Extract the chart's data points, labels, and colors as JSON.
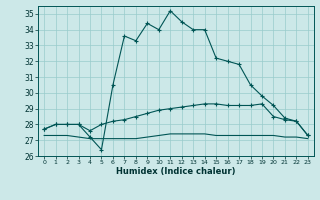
{
  "xlabel": "Humidex (Indice chaleur)",
  "background_color": "#cce8e8",
  "grid_color": "#99cccc",
  "line_color": "#005555",
  "xlim": [
    -0.5,
    23.5
  ],
  "ylim": [
    26,
    35.5
  ],
  "yticks": [
    26,
    27,
    28,
    29,
    30,
    31,
    32,
    33,
    34,
    35
  ],
  "xticks": [
    0,
    1,
    2,
    3,
    4,
    5,
    6,
    7,
    8,
    9,
    10,
    11,
    12,
    13,
    14,
    15,
    16,
    17,
    18,
    19,
    20,
    21,
    22,
    23
  ],
  "line_main_x": [
    0,
    1,
    2,
    3,
    4,
    5,
    6,
    7,
    8,
    9,
    10,
    11,
    12,
    13,
    14,
    15,
    16,
    17,
    18,
    19,
    20,
    21,
    22,
    23
  ],
  "line_main_y": [
    27.7,
    28.0,
    28.0,
    28.0,
    27.2,
    26.4,
    30.5,
    33.6,
    33.3,
    34.4,
    34.0,
    35.2,
    34.5,
    34.0,
    34.0,
    32.2,
    32.0,
    31.8,
    30.5,
    29.8,
    29.2,
    28.4,
    28.2,
    27.3
  ],
  "line_slow_x": [
    0,
    1,
    2,
    3,
    4,
    5,
    6,
    7,
    8,
    9,
    10,
    11,
    12,
    13,
    14,
    15,
    16,
    17,
    18,
    19,
    20,
    21,
    22,
    23
  ],
  "line_slow_y": [
    27.7,
    28.0,
    28.0,
    28.0,
    27.6,
    28.0,
    28.2,
    28.3,
    28.5,
    28.7,
    28.9,
    29.0,
    29.1,
    29.2,
    29.3,
    29.3,
    29.2,
    29.2,
    29.2,
    29.3,
    28.5,
    28.3,
    28.2,
    27.3
  ],
  "line_flat_x": [
    0,
    1,
    2,
    3,
    4,
    5,
    6,
    7,
    8,
    9,
    10,
    11,
    12,
    13,
    14,
    15,
    16,
    17,
    18,
    19,
    20,
    21,
    22,
    23
  ],
  "line_flat_y": [
    27.3,
    27.3,
    27.3,
    27.2,
    27.1,
    27.1,
    27.1,
    27.1,
    27.1,
    27.2,
    27.3,
    27.4,
    27.4,
    27.4,
    27.4,
    27.3,
    27.3,
    27.3,
    27.3,
    27.3,
    27.3,
    27.2,
    27.2,
    27.1
  ]
}
